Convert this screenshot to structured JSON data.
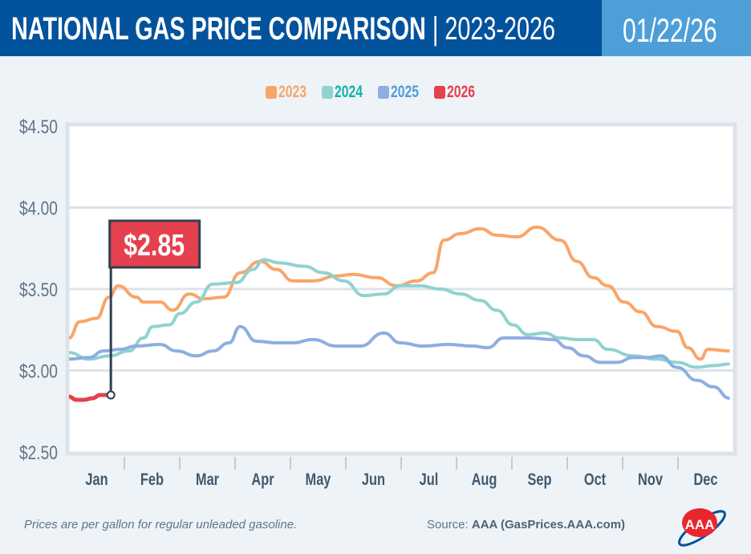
{
  "header": {
    "title": "NATIONAL GAS PRICE COMPARISON",
    "separator": "|",
    "years": "2023-2026",
    "date": "01/22/26"
  },
  "footer": {
    "note": "Prices are per gallon for regular unleaded gasoline.",
    "source_label": "Source:",
    "source": "AAA (GasPrices.AAA.com)",
    "logo_text": "AAA"
  },
  "chart_data": {
    "type": "line",
    "title": "NATIONAL GAS PRICE COMPARISON | 2023-2026",
    "xlabel": "",
    "ylabel": "",
    "ylim": [
      2.5,
      4.5
    ],
    "yticks": [
      "$2.50",
      "$3.00",
      "$3.50",
      "$4.00",
      "$4.50"
    ],
    "ytick_values": [
      2.5,
      3.0,
      3.5,
      4.0,
      4.5
    ],
    "categories": [
      "Jan",
      "Feb",
      "Mar",
      "Apr",
      "May",
      "Jun",
      "Jul",
      "Aug",
      "Sep",
      "Oct",
      "Nov",
      "Dec"
    ],
    "grid": true,
    "legend": "top-center",
    "callout": {
      "label": "$2.85",
      "date": "01-24",
      "value": 2.85,
      "color": "#e5404e"
    },
    "series": [
      {
        "name": "2023",
        "color": "#f9a56a",
        "points": [
          [
            "01-01",
            3.2
          ],
          [
            "01-07",
            3.3
          ],
          [
            "01-16",
            3.32
          ],
          [
            "01-23",
            3.45
          ],
          [
            "01-28",
            3.52
          ],
          [
            "02-07",
            3.45
          ],
          [
            "02-11",
            3.42
          ],
          [
            "02-20",
            3.42
          ],
          [
            "02-27",
            3.37
          ],
          [
            "03-08",
            3.47
          ],
          [
            "03-16",
            3.44
          ],
          [
            "03-27",
            3.45
          ],
          [
            "04-05",
            3.6
          ],
          [
            "04-16",
            3.67
          ],
          [
            "04-25",
            3.62
          ],
          [
            "05-04",
            3.55
          ],
          [
            "05-15",
            3.55
          ],
          [
            "05-28",
            3.58
          ],
          [
            "06-06",
            3.59
          ],
          [
            "06-19",
            3.57
          ],
          [
            "06-30",
            3.52
          ],
          [
            "07-11",
            3.55
          ],
          [
            "07-20",
            3.6
          ],
          [
            "07-26",
            3.8
          ],
          [
            "08-04",
            3.84
          ],
          [
            "08-15",
            3.87
          ],
          [
            "08-24",
            3.83
          ],
          [
            "09-04",
            3.82
          ],
          [
            "09-15",
            3.88
          ],
          [
            "09-28",
            3.8
          ],
          [
            "10-07",
            3.67
          ],
          [
            "10-16",
            3.57
          ],
          [
            "10-24",
            3.52
          ],
          [
            "11-02",
            3.42
          ],
          [
            "11-11",
            3.36
          ],
          [
            "11-20",
            3.27
          ],
          [
            "12-01",
            3.24
          ],
          [
            "12-07",
            3.14
          ],
          [
            "12-14",
            3.07
          ],
          [
            "12-18",
            3.13
          ],
          [
            "12-30",
            3.12
          ]
        ]
      },
      {
        "name": "2024",
        "color": "#8fd3cf",
        "points": [
          [
            "01-01",
            3.11
          ],
          [
            "01-12",
            3.07
          ],
          [
            "01-23",
            3.09
          ],
          [
            "02-03",
            3.12
          ],
          [
            "02-11",
            3.2
          ],
          [
            "02-16",
            3.27
          ],
          [
            "02-25",
            3.28
          ],
          [
            "03-03",
            3.35
          ],
          [
            "03-12",
            3.42
          ],
          [
            "03-21",
            3.53
          ],
          [
            "04-03",
            3.54
          ],
          [
            "04-12",
            3.62
          ],
          [
            "04-18",
            3.68
          ],
          [
            "04-27",
            3.66
          ],
          [
            "05-10",
            3.64
          ],
          [
            "05-21",
            3.6
          ],
          [
            "06-01",
            3.55
          ],
          [
            "06-12",
            3.46
          ],
          [
            "06-23",
            3.47
          ],
          [
            "07-02",
            3.52
          ],
          [
            "07-13",
            3.52
          ],
          [
            "07-24",
            3.5
          ],
          [
            "08-04",
            3.47
          ],
          [
            "08-15",
            3.43
          ],
          [
            "08-24",
            3.37
          ],
          [
            "09-02",
            3.28
          ],
          [
            "09-10",
            3.22
          ],
          [
            "09-19",
            3.23
          ],
          [
            "09-28",
            3.2
          ],
          [
            "10-07",
            3.19
          ],
          [
            "10-16",
            3.19
          ],
          [
            "10-24",
            3.13
          ],
          [
            "11-07",
            3.09
          ],
          [
            "11-20",
            3.07
          ],
          [
            "12-01",
            3.05
          ],
          [
            "12-12",
            3.02
          ],
          [
            "12-21",
            3.03
          ],
          [
            "12-30",
            3.04
          ]
        ]
      },
      {
        "name": "2025",
        "color": "#8eaee3",
        "points": [
          [
            "01-01",
            3.07
          ],
          [
            "01-12",
            3.08
          ],
          [
            "01-20",
            3.12
          ],
          [
            "01-29",
            3.13
          ],
          [
            "02-07",
            3.15
          ],
          [
            "02-20",
            3.16
          ],
          [
            "03-01",
            3.12
          ],
          [
            "03-12",
            3.09
          ],
          [
            "03-21",
            3.12
          ],
          [
            "03-30",
            3.17
          ],
          [
            "04-05",
            3.27
          ],
          [
            "04-14",
            3.18
          ],
          [
            "04-25",
            3.17
          ],
          [
            "05-04",
            3.17
          ],
          [
            "05-15",
            3.19
          ],
          [
            "05-28",
            3.15
          ],
          [
            "06-10",
            3.15
          ],
          [
            "06-23",
            3.23
          ],
          [
            "07-02",
            3.17
          ],
          [
            "07-15",
            3.15
          ],
          [
            "07-28",
            3.16
          ],
          [
            "08-11",
            3.15
          ],
          [
            "08-19",
            3.14
          ],
          [
            "08-28",
            3.2
          ],
          [
            "09-10",
            3.2
          ],
          [
            "09-24",
            3.19
          ],
          [
            "10-02",
            3.14
          ],
          [
            "10-11",
            3.09
          ],
          [
            "10-20",
            3.05
          ],
          [
            "10-29",
            3.05
          ],
          [
            "11-07",
            3.08
          ],
          [
            "11-15",
            3.08
          ],
          [
            "11-22",
            3.09
          ],
          [
            "12-01",
            3.02
          ],
          [
            "12-12",
            2.94
          ],
          [
            "12-21",
            2.9
          ],
          [
            "12-30",
            2.83
          ]
        ]
      },
      {
        "name": "2026",
        "color": "#e5404e",
        "points": [
          [
            "01-01",
            2.84
          ],
          [
            "01-05",
            2.82
          ],
          [
            "01-09",
            2.82
          ],
          [
            "01-14",
            2.83
          ],
          [
            "01-18",
            2.85
          ],
          [
            "01-24",
            2.85
          ]
        ]
      }
    ]
  }
}
